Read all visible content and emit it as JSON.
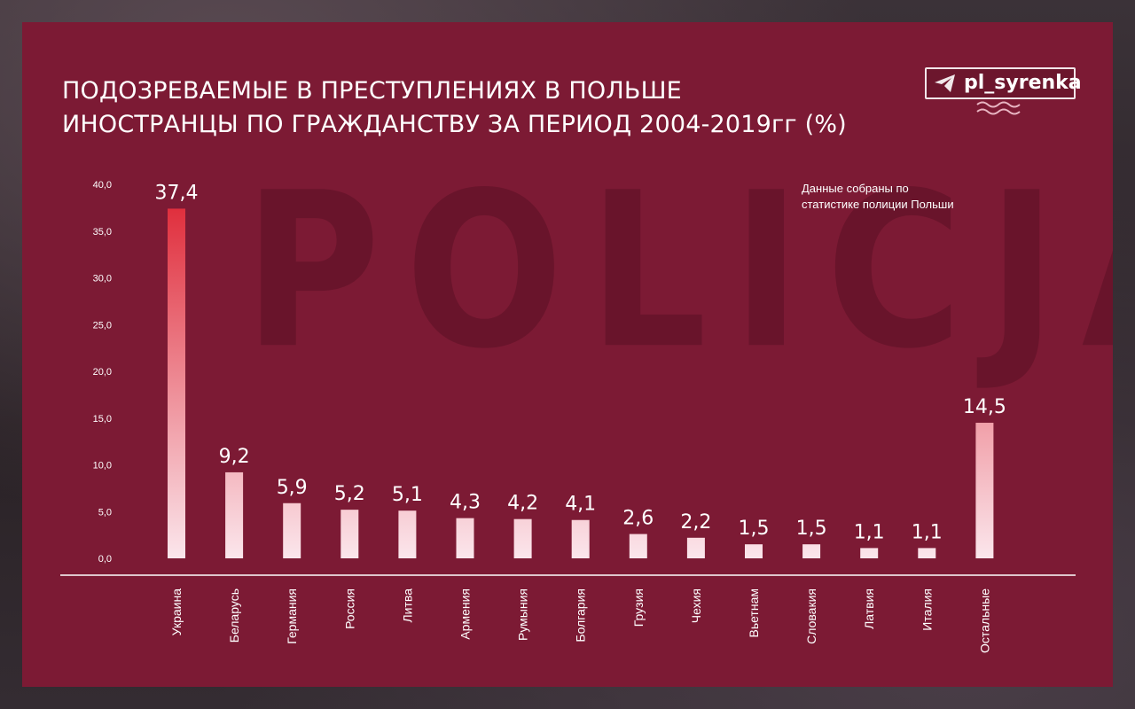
{
  "title": {
    "line1": "ПОДОЗРЕВАЕМЫЕ В ПРЕСТУПЛЕНИЯХ В ПОЛЬШЕ",
    "line2": "ИНОСТРАНЦЫ ПО ГРАЖДАНСТВУ ЗА ПЕРИОД 2004-2019гг (%)"
  },
  "background_text": "POLICJA",
  "logo": {
    "text": "pl_syrenka",
    "icon": "paper-plane-icon"
  },
  "note": {
    "line1": "Данные собраны по",
    "line2": "статистике полиции Польши"
  },
  "colors": {
    "panel": "#7c1a34",
    "bar_top": "#e0303e",
    "bar_bottom": "#fbe6ec",
    "text": "#ffffff"
  },
  "chart_data": {
    "type": "bar",
    "categories": [
      "Украина",
      "Беларусь",
      "Германия",
      "Россия",
      "Литва",
      "Армения",
      "Румыния",
      "Болгария",
      "Грузия",
      "Чехия",
      "Вьетнам",
      "Словакия",
      "Латвия",
      "Италия",
      "Остальные"
    ],
    "values": [
      37.4,
      9.2,
      5.9,
      5.2,
      5.1,
      4.3,
      4.2,
      4.1,
      2.6,
      2.2,
      1.5,
      1.5,
      1.1,
      1.1,
      14.5
    ],
    "value_labels": [
      "37,4",
      "9,2",
      "5,9",
      "5,2",
      "5,1",
      "4,3",
      "4,2",
      "4,1",
      "2,6",
      "2,2",
      "1,5",
      "1,5",
      "1,1",
      "1,1",
      "14,5"
    ],
    "yticks": [
      0,
      5,
      10,
      15,
      20,
      25,
      30,
      35,
      40
    ],
    "ytick_labels": [
      "0,0",
      "5,0",
      "10,0",
      "15,0",
      "20,0",
      "25,0",
      "30,0",
      "35,0",
      "40,0"
    ],
    "ylim": [
      0,
      40
    ],
    "grid": false,
    "xlabel": "",
    "ylabel": ""
  }
}
